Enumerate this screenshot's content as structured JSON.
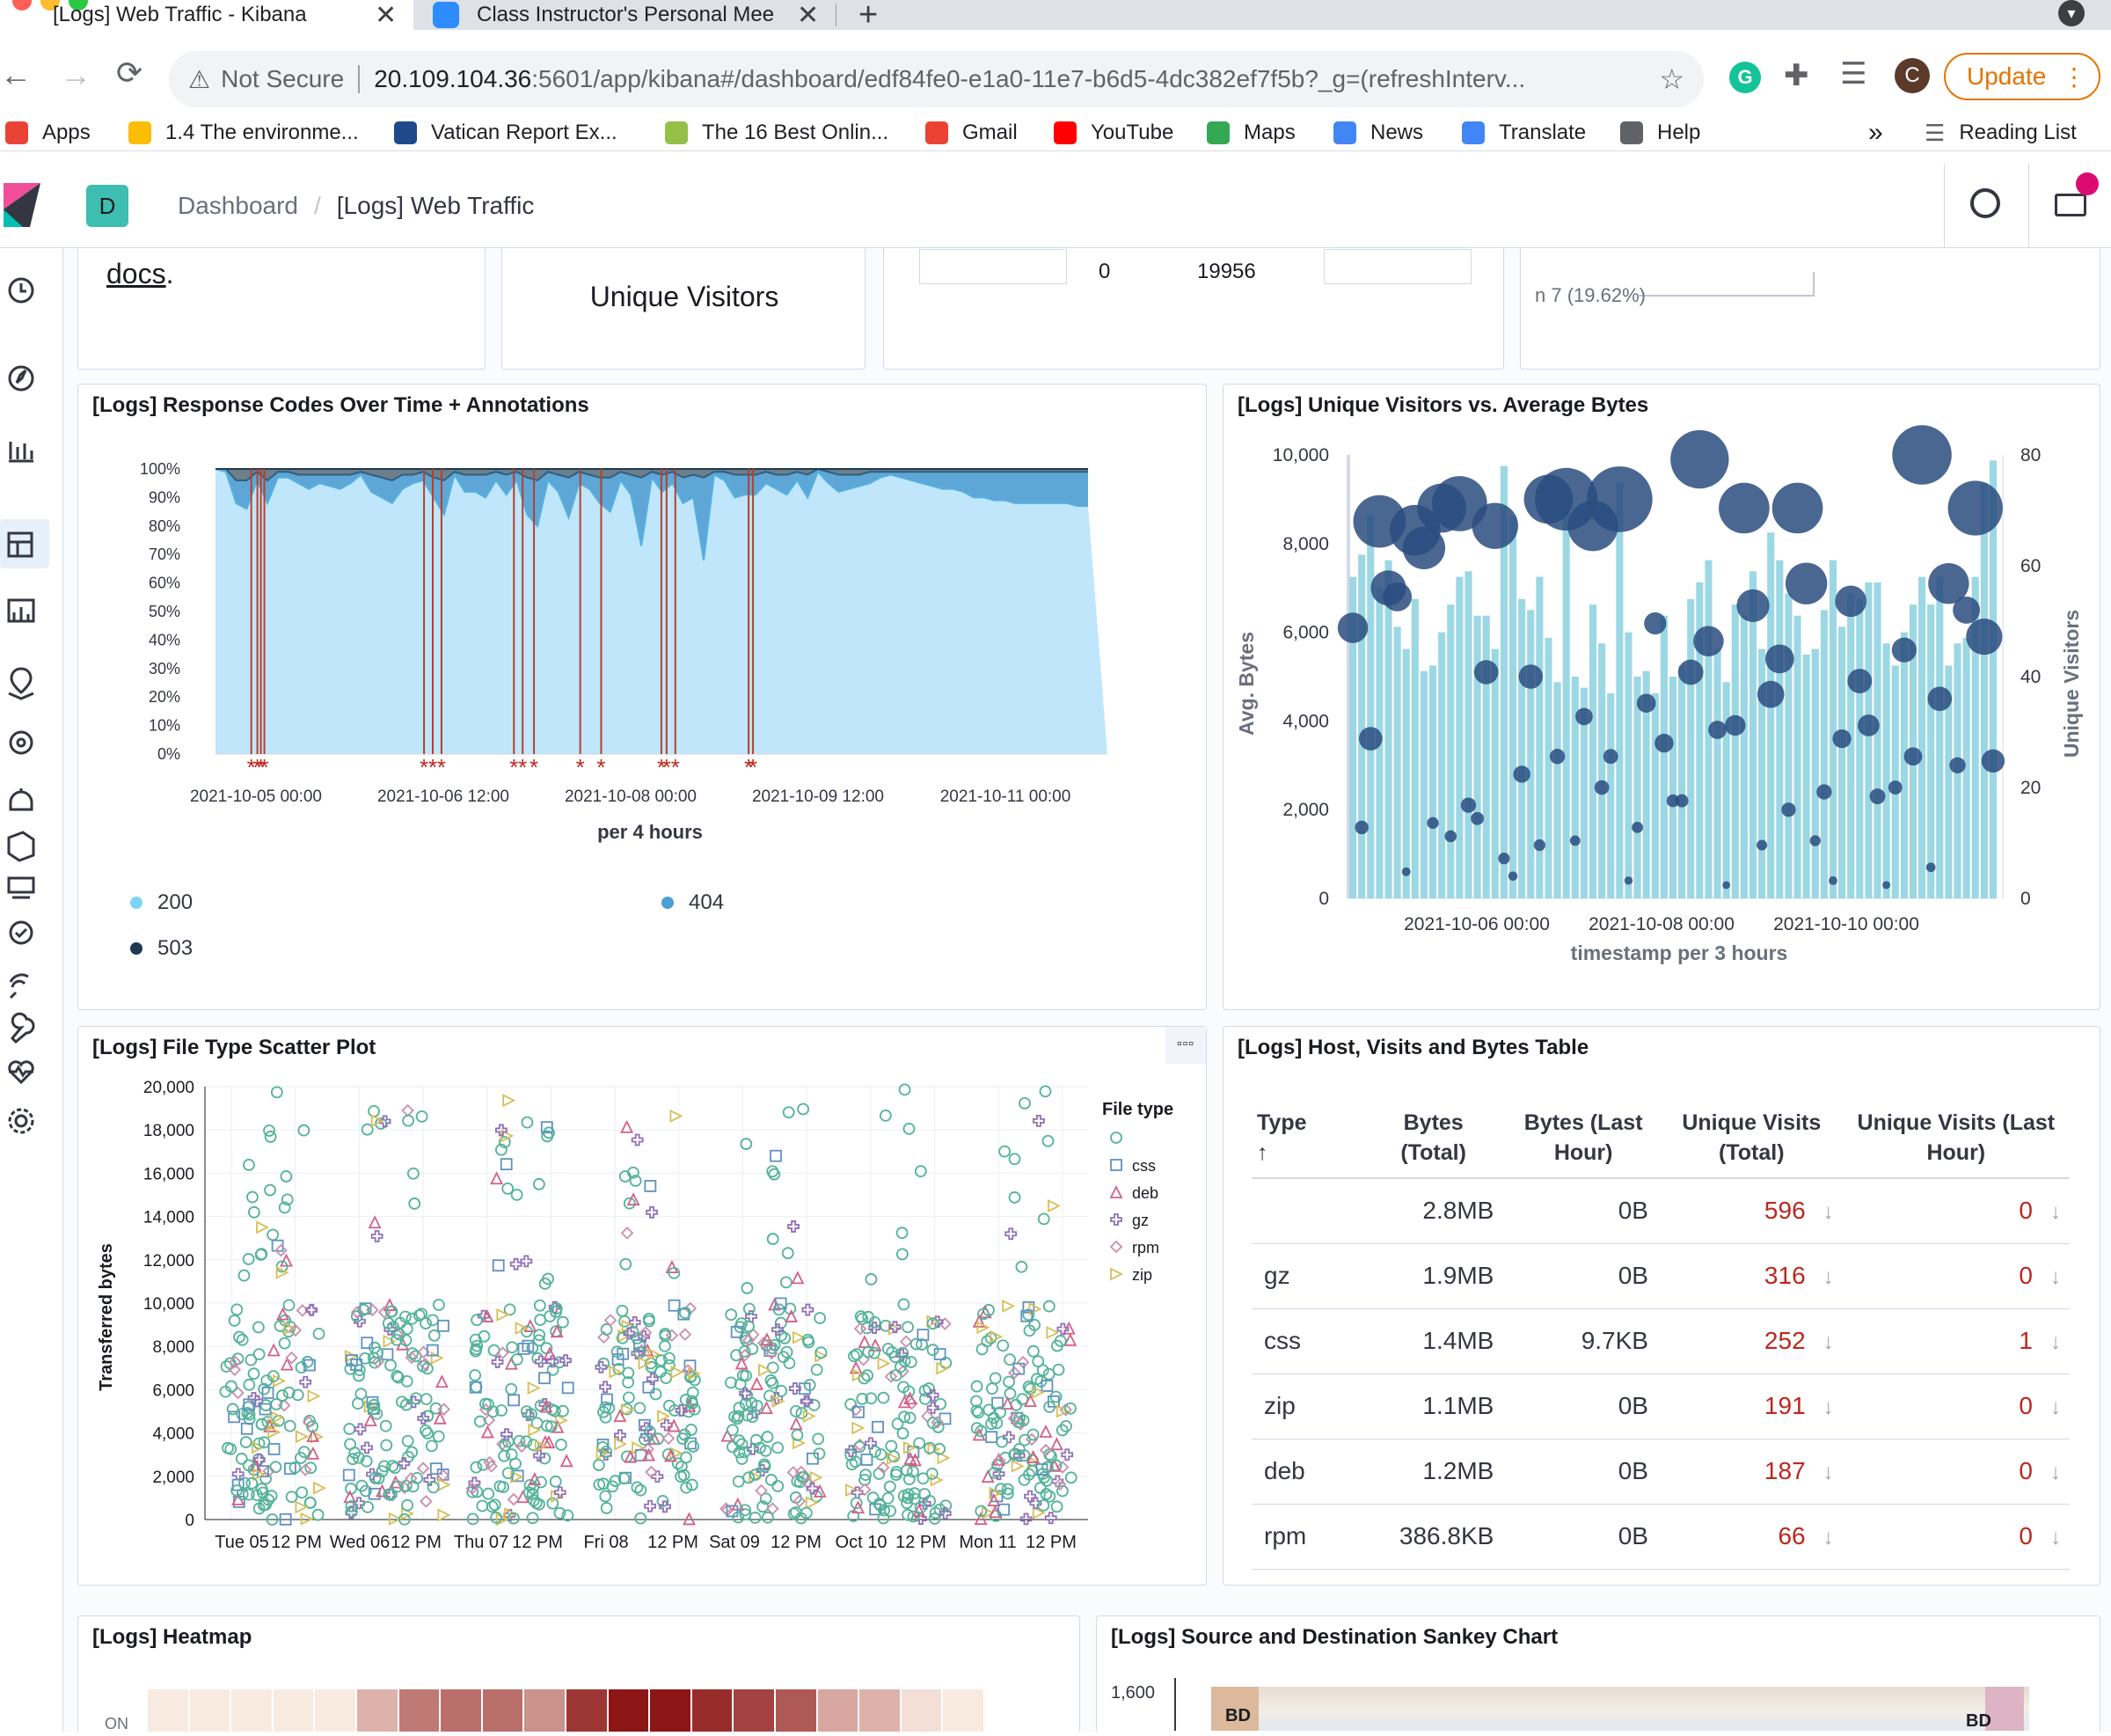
{
  "browser": {
    "tabs": [
      {
        "title": "[Logs] Web Traffic - Kibana",
        "active": true
      },
      {
        "title": "Class Instructor's Personal Mee",
        "active": false
      }
    ],
    "new_tab": "+",
    "url_warning": "Not Secure",
    "url_host": "20.109.104.36",
    "url_rest": ":5601/app/kibana#/dashboard/edf84fe0-e1a0-11e7-b6d5-4dc382ef7f5b?_g=(refreshInterv...",
    "update_label": "Update",
    "profile_initial": "C",
    "bookmarks": [
      {
        "label": "Apps",
        "icon": "apps-grid-icon",
        "color": "#ea4335"
      },
      {
        "label": "1.4 The environme...",
        "icon": "bulb-icon",
        "color": "#fbbc04"
      },
      {
        "label": "Vatican Report Ex...",
        "icon": "npr-icon",
        "color": "#1e4a8c"
      },
      {
        "label": "The 16 Best Onlin...",
        "icon": "shopify-icon",
        "color": "#95bf47"
      },
      {
        "label": "Gmail",
        "icon": "gmail-icon",
        "color": "#ea4335"
      },
      {
        "label": "YouTube",
        "icon": "youtube-icon",
        "color": "#ff0000"
      },
      {
        "label": "Maps",
        "icon": "maps-icon",
        "color": "#34a853"
      },
      {
        "label": "News",
        "icon": "news-icon",
        "color": "#4285f4"
      },
      {
        "label": "Translate",
        "icon": "translate-icon",
        "color": "#4285f4"
      },
      {
        "label": "Help",
        "icon": "help-globe-icon",
        "color": "#5f6368"
      }
    ],
    "more_bookmarks": "»",
    "reading_list": "Reading List"
  },
  "kibana": {
    "space_initial": "D",
    "breadcrumbs": [
      "Dashboard",
      "[Logs] Web Traffic"
    ],
    "accent": "#e7664c"
  },
  "top_panels": {
    "docs_link": "docs",
    "docs_period": ".",
    "unique_visitors_label": "Unique Visitors",
    "table_fragment": [
      "0",
      "19956"
    ],
    "pie_fragment": "n 7 (19.62%)"
  },
  "panels": {
    "response_codes": {
      "title": "[Logs] Response Codes Over Time + Annotations",
      "y_ticks": [
        "100%",
        "90%",
        "80%",
        "70%",
        "60%",
        "50%",
        "40%",
        "30%",
        "20%",
        "10%",
        "0%"
      ],
      "x_ticks": [
        "2021-10-05 00:00",
        "2021-10-06 12:00",
        "2021-10-08 00:00",
        "2021-10-09 12:00",
        "2021-10-11 00:00"
      ],
      "x_title": "per 4 hours",
      "legend": [
        {
          "label": "200",
          "color": "#7dd3f7"
        },
        {
          "label": "404",
          "color": "#4a9fd4"
        },
        {
          "label": "503",
          "color": "#1d3a50"
        }
      ]
    },
    "visitors_bytes": {
      "title": "[Logs] Unique Visitors vs. Average Bytes",
      "y_left_ticks": [
        "10,000",
        "8,000",
        "6,000",
        "4,000",
        "2,000",
        "0"
      ],
      "y_right_ticks": [
        "80",
        "60",
        "40",
        "20",
        "0"
      ],
      "x_ticks": [
        "2021-10-06 00:00",
        "2021-10-08 00:00",
        "2021-10-10 00:00"
      ],
      "y_left_title": "Avg. Bytes",
      "y_right_title": "Unique Visitors",
      "x_title": "timestamp per 3 hours"
    },
    "scatter": {
      "title": "[Logs] File Type Scatter Plot",
      "menu": "▫▫▫",
      "y_title": "Transferred bytes",
      "y_ticks": [
        "20,000",
        "18,000",
        "16,000",
        "14,000",
        "12,000",
        "10,000",
        "8,000",
        "6,000",
        "4,000",
        "2,000",
        "0"
      ],
      "x_ticks": [
        "Tue 05",
        "12 PM",
        "Wed 06",
        "12 PM",
        "Thu 07",
        "12 PM",
        "Fri 08",
        "12 PM",
        "Sat 09",
        "12 PM",
        "Oct 10",
        "12 PM",
        "Mon 11",
        "12 PM"
      ],
      "legend_title": "File type",
      "legend": [
        {
          "label": "",
          "shape": "circle",
          "color": "#54b399"
        },
        {
          "label": "css",
          "shape": "square",
          "color": "#6092c0"
        },
        {
          "label": "deb",
          "shape": "triangle",
          "color": "#d36086"
        },
        {
          "label": "gz",
          "shape": "cross",
          "color": "#9170b8"
        },
        {
          "label": "rpm",
          "shape": "diamond",
          "color": "#ca8eae"
        },
        {
          "label": "zip",
          "shape": "triangle-right",
          "color": "#d6bf57"
        }
      ]
    },
    "host_table": {
      "title": "[Logs] Host, Visits and Bytes Table",
      "headers": [
        "Type",
        "Bytes\n(Total)",
        "Bytes (Last\nHour)",
        "Unique Visits\n(Total)",
        "Unique Visits (Last\nHour)"
      ],
      "sort_arrow": "↑",
      "row_arrow": "↓",
      "rows": [
        [
          "",
          "2.8MB",
          "0B",
          "596",
          "0"
        ],
        [
          "gz",
          "1.9MB",
          "0B",
          "316",
          "0"
        ],
        [
          "css",
          "1.4MB",
          "9.7KB",
          "252",
          "1"
        ],
        [
          "zip",
          "1.1MB",
          "0B",
          "191",
          "0"
        ],
        [
          "deb",
          "1.2MB",
          "0B",
          "187",
          "0"
        ],
        [
          "rpm",
          "386.8KB",
          "0B",
          "66",
          "0"
        ]
      ],
      "highlight_color": "#bd271e"
    },
    "heatmap": {
      "title": "[Logs] Heatmap",
      "row_label": "ON",
      "cells": [
        0.05,
        0.05,
        0.05,
        0.05,
        0.05,
        0.3,
        0.55,
        0.6,
        0.6,
        0.45,
        0.85,
        1.0,
        1.0,
        0.9,
        0.8,
        0.7,
        0.35,
        0.3,
        0.1,
        0.05
      ]
    },
    "sankey": {
      "title": "[Logs] Source and Destination Sankey Chart",
      "y_tick": "1,600",
      "left_node": "BD",
      "right_node": "BD"
    }
  },
  "chart_data": [
    {
      "type": "area",
      "title": "[Logs] Response Codes Over Time + Annotations",
      "xlabel": "per 4 hours",
      "ylabel": "",
      "ylim": [
        0,
        100
      ],
      "stacked_percent": true,
      "series": [
        {
          "name": "200",
          "values": [
            100,
            99,
            88,
            86,
            96,
            88,
            97,
            97,
            95,
            93,
            95,
            94,
            93,
            95,
            98,
            92,
            90,
            88,
            93,
            95,
            96,
            90,
            84,
            98,
            92,
            92,
            90,
            96,
            91,
            96,
            84,
            80,
            96,
            92,
            83,
            95,
            93,
            88,
            85,
            96,
            91,
            73,
            97,
            92,
            95,
            88,
            90,
            68,
            98,
            96,
            90,
            91,
            91,
            95,
            93,
            91,
            96,
            90,
            99,
            95,
            92,
            93,
            94,
            95,
            97,
            98,
            97,
            96,
            95,
            94,
            93,
            93,
            92,
            90,
            90,
            89,
            89,
            88,
            88,
            88,
            88,
            88,
            88,
            87,
            87
          ]
        },
        {
          "name": "404",
          "values": [
            0,
            1,
            8,
            10,
            3,
            8,
            2,
            2,
            3,
            5,
            3,
            4,
            5,
            3,
            1,
            6,
            7,
            8,
            5,
            3,
            3,
            7,
            12,
            1,
            6,
            6,
            8,
            3,
            7,
            3,
            13,
            16,
            3,
            6,
            14,
            4,
            5,
            9,
            12,
            3,
            7,
            24,
            2,
            6,
            4,
            9,
            8,
            29,
            1,
            3,
            8,
            7,
            7,
            4,
            5,
            7,
            3,
            8,
            1,
            4,
            6,
            5,
            4,
            4,
            2,
            1,
            2,
            3,
            4,
            5,
            6,
            6,
            7,
            9,
            9,
            10,
            10,
            11,
            11,
            11,
            11,
            11,
            11,
            12,
            12
          ]
        },
        {
          "name": "503",
          "values": [
            0,
            0,
            4,
            4,
            1,
            4,
            1,
            1,
            2,
            2,
            2,
            2,
            2,
            2,
            1,
            2,
            3,
            4,
            2,
            2,
            1,
            3,
            4,
            1,
            2,
            2,
            2,
            1,
            2,
            1,
            3,
            4,
            1,
            2,
            3,
            1,
            2,
            3,
            3,
            1,
            2,
            3,
            1,
            2,
            1,
            3,
            2,
            3,
            1,
            1,
            2,
            2,
            2,
            1,
            2,
            2,
            1,
            2,
            0,
            1,
            2,
            2,
            2,
            1,
            1,
            1,
            1,
            1,
            1,
            1,
            1,
            1,
            1,
            1,
            1,
            1,
            1,
            1,
            1,
            1,
            1,
            1,
            1,
            1,
            1
          ]
        }
      ]
    },
    {
      "type": "bar",
      "title": "[Logs] Unique Visitors vs. Average Bytes",
      "xlabel": "timestamp per 3 hours",
      "ylabel": "Avg. Bytes",
      "y2label": "Unique Visitors",
      "ylim": [
        0,
        10000
      ],
      "y2lim": [
        0,
        80
      ],
      "series": [
        {
          "name": "Unique Visitors",
          "values": [
            58,
            62,
            69,
            56,
            61,
            49,
            45,
            54,
            41,
            42,
            48,
            53,
            58,
            59,
            51,
            51,
            45,
            78,
            69,
            54,
            52,
            58,
            47,
            39,
            70,
            40,
            38,
            53,
            46,
            37,
            75,
            48,
            40,
            41,
            37,
            51,
            40,
            42,
            54,
            57,
            61,
            45,
            39,
            53,
            51,
            59,
            45,
            66,
            61,
            55,
            51,
            44,
            45,
            52,
            61,
            49,
            55,
            54,
            57,
            57,
            46,
            42,
            48,
            53,
            58,
            53,
            58,
            42,
            46,
            47,
            58,
            75,
            79
          ]
        },
        {
          "name": "Avg. Bytes",
          "values": [
            6100,
            1600,
            3600,
            8500,
            7000,
            6800,
            600,
            8300,
            7900,
            1700,
            8800,
            1400,
            8900,
            2100,
            1800,
            5100,
            8400,
            900,
            500,
            2800,
            5000,
            1200,
            9000,
            3200,
            9000,
            1300,
            4100,
            8400,
            2500,
            3200,
            9000,
            400,
            1600,
            4400,
            6200,
            3500,
            2200,
            2200,
            5100,
            9900,
            5800,
            3800,
            300,
            3900,
            8800,
            6600,
            1200,
            4600,
            5400,
            2000,
            8800,
            7100,
            1300,
            2400,
            400,
            3600,
            6700,
            4900,
            3900,
            2300,
            300,
            2500,
            5600,
            3200,
            10000,
            700,
            4500,
            7100,
            3000,
            6500,
            8800,
            5900,
            3100
          ]
        }
      ]
    },
    {
      "type": "scatter",
      "title": "[Logs] File Type Scatter Plot",
      "xlabel": "",
      "ylabel": "Transferred bytes",
      "ylim": [
        0,
        20000
      ],
      "legend_title": "File type",
      "series": [
        {
          "name": "",
          "count": 720
        },
        {
          "name": "css",
          "count": 70
        },
        {
          "name": "deb",
          "count": 70
        },
        {
          "name": "gz",
          "count": 70
        },
        {
          "name": "rpm",
          "count": 70
        },
        {
          "name": "zip",
          "count": 70
        }
      ]
    }
  ]
}
